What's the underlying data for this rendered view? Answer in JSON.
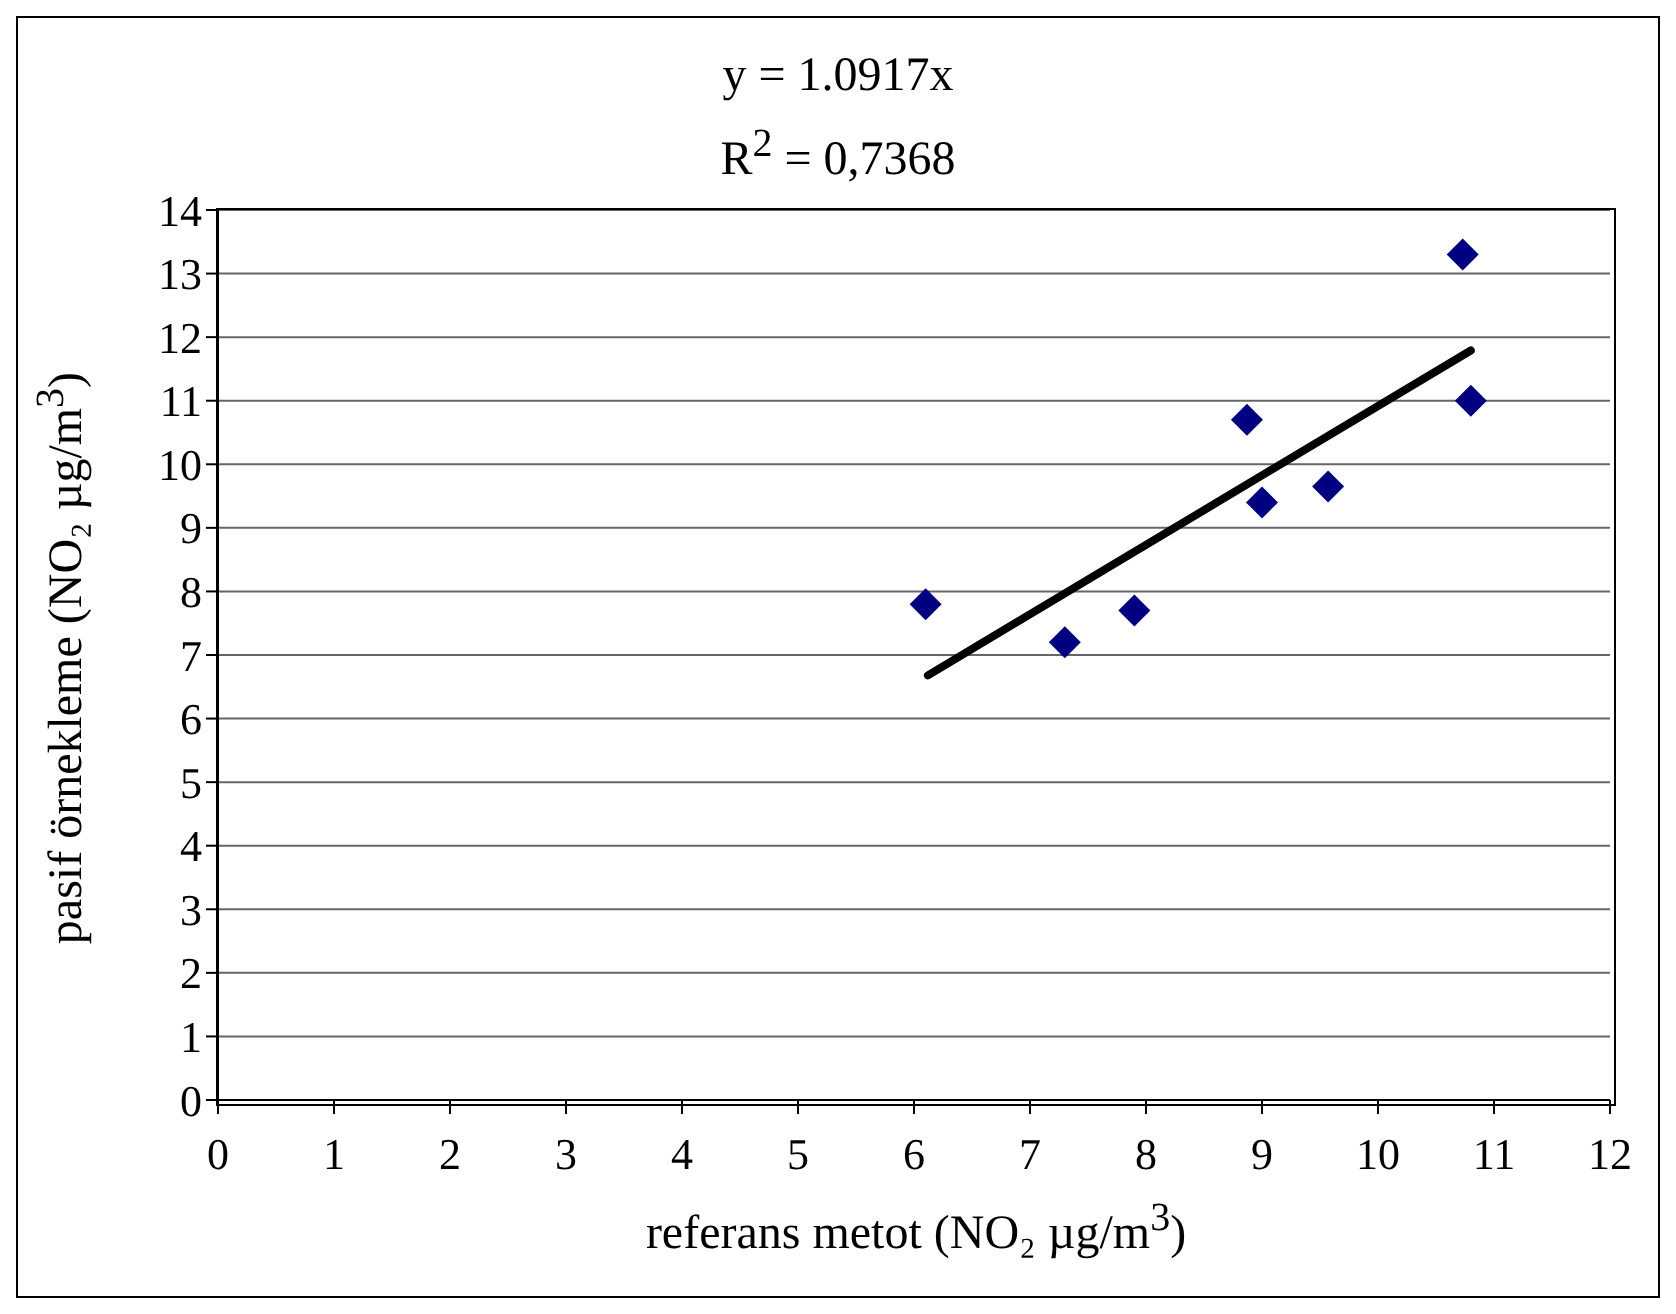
{
  "chart_data": {
    "type": "scatter",
    "title": "y = 1.0917x",
    "subtitle": "R$^{2}$ = 0,7368",
    "xlabel": "referans metot (NO₂  µg/m$^{3}$)",
    "ylabel": "pasif örnekleme (NO₂ µg/m$^{3}$)",
    "xlim": [
      0,
      12
    ],
    "xticks": [
      0,
      1,
      2,
      3,
      4,
      5,
      6,
      7,
      8,
      9,
      10,
      11,
      12
    ],
    "ylim": [
      0,
      14
    ],
    "yticks": [
      0,
      1,
      2,
      3,
      4,
      5,
      6,
      7,
      8,
      9,
      10,
      11,
      12,
      13,
      14
    ],
    "grid": "y",
    "legend": false,
    "series": [
      {
        "color": "#000080",
        "marker": "diamond",
        "x": [
          6.1,
          7.3,
          7.9,
          8.87,
          9.0,
          9.57,
          10.73,
          10.8
        ],
        "values": [
          7.8,
          7.2,
          7.7,
          10.7,
          9.4,
          9.65,
          13.3,
          11.0
        ]
      },
      {
        "type": "line",
        "color": "#000000",
        "marker": "none",
        "x": [
          6.12,
          10.8
        ],
        "values": [
          6.68,
          11.79
        ]
      }
    ]
  }
}
